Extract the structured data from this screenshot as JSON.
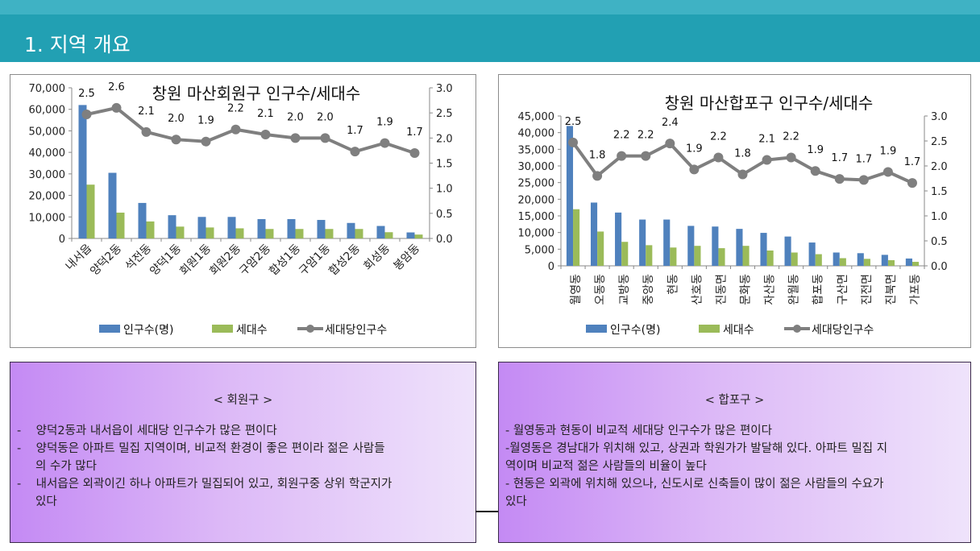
{
  "header": {
    "title": "1. 지역 개요"
  },
  "chart_data": [
    {
      "type": "bar",
      "title": "창원 마산회원구 인구수/세대수",
      "categories": [
        "내서읍",
        "양덕2동",
        "석전동",
        "양덕1동",
        "회원1동",
        "회원2동",
        "구암2동",
        "합성1동",
        "구암1동",
        "합성2동",
        "회성동",
        "봉암동"
      ],
      "series": [
        {
          "name": "인구수(명)",
          "type": "bar",
          "axis": "left",
          "color": "#4f81bd",
          "values": [
            62000,
            30500,
            16500,
            10800,
            10000,
            10000,
            9000,
            9000,
            8600,
            7200,
            5800,
            2800
          ]
        },
        {
          "name": "세대수",
          "type": "bar",
          "axis": "left",
          "color": "#9bbb59",
          "values": [
            25000,
            12000,
            7900,
            5500,
            5100,
            4700,
            4400,
            4400,
            4400,
            4400,
            2900,
            1800
          ]
        },
        {
          "name": "세대당인구수",
          "type": "line",
          "axis": "right",
          "color": "#7f7f7f",
          "values": [
            2.47,
            2.6,
            2.12,
            1.97,
            1.93,
            2.17,
            2.07,
            2.0,
            2.0,
            1.73,
            1.9,
            1.7
          ],
          "labels": [
            "2.5",
            "2.6",
            "2.1",
            "2.0",
            "1.9",
            "2.2",
            "2.1",
            "2.0",
            "2.0",
            "1.7",
            "1.9",
            "1.7"
          ]
        }
      ],
      "ylim": [
        0,
        70000
      ],
      "yticks": [
        "0",
        "10,000",
        "20,000",
        "30,000",
        "40,000",
        "50,000",
        "60,000",
        "70,000"
      ],
      "y2lim": [
        0,
        3
      ],
      "y2ticks": [
        "0.0",
        "0.5",
        "1.0",
        "1.5",
        "2.0",
        "2.5",
        "3.0"
      ],
      "label_rotation": "diagonal",
      "legend": "bottom"
    },
    {
      "type": "bar",
      "title": "창원 마산합포구 인구수/세대수",
      "categories": [
        "월영동",
        "오동동",
        "교방동",
        "중앙동",
        "현동",
        "산호동",
        "진동면",
        "문화동",
        "자산동",
        "완월동",
        "합포동",
        "구산면",
        "진전면",
        "진북면",
        "가포동"
      ],
      "series": [
        {
          "name": "인구수(명)",
          "type": "bar",
          "axis": "left",
          "color": "#4f81bd",
          "values": [
            42000,
            19000,
            16000,
            13900,
            13900,
            12000,
            11800,
            11100,
            9900,
            8800,
            7000,
            4000,
            3800,
            3300,
            2200
          ]
        },
        {
          "name": "세대수",
          "type": "bar",
          "axis": "left",
          "color": "#9bbb59",
          "values": [
            17000,
            10300,
            7200,
            6200,
            5500,
            6000,
            5300,
            6000,
            4600,
            4000,
            3500,
            2300,
            2100,
            1700,
            1200
          ]
        },
        {
          "name": "세대당인구수",
          "type": "line",
          "axis": "right",
          "color": "#7f7f7f",
          "values": [
            2.47,
            1.8,
            2.2,
            2.2,
            2.45,
            1.93,
            2.17,
            1.83,
            2.12,
            2.17,
            1.9,
            1.74,
            1.72,
            1.88,
            1.66
          ],
          "labels": [
            "2.5",
            "1.8",
            "2.2",
            "2.2",
            "2.4",
            "1.9",
            "2.2",
            "1.8",
            "2.1",
            "2.2",
            "1.9",
            "1.7",
            "1.7",
            "1.9",
            "1.7"
          ]
        }
      ],
      "ylim": [
        0,
        45000
      ],
      "yticks": [
        "0",
        "5,000",
        "10,000",
        "15,000",
        "20,000",
        "25,000",
        "30,000",
        "35,000",
        "40,000",
        "45,000"
      ],
      "y2lim": [
        0,
        3
      ],
      "y2ticks": [
        "0.0",
        "0.5",
        "1.0",
        "1.5",
        "2.0",
        "2.5",
        "3.0"
      ],
      "label_rotation": "vertical",
      "legend": "bottom"
    }
  ],
  "notes": [
    {
      "heading": "< 회원구 >",
      "lines": [
        "-    양덕2동과 내서읍이 세대당 인구수가 많은 편이다",
        "-    양덕동은 아파트 밀집 지역이며, 비교적 환경이 좋은 편이라 젊은 사람들\n     의 수가 많다",
        "-    내서읍은 외곽이긴 하나 아파트가 밀집되어 있고, 회원구중 상위 학군지가\n     있다"
      ]
    },
    {
      "heading": "< 합포구 >",
      "lines": [
        "- 월영동과 현동이 비교적 세대당 인구수가 많은 편이다",
        "-월영동은 경남대가 위치해 있고, 상권과 학원가가 발달해 있다. 아파트 밀집 지\n역이며 비교적 젊은 사람들의 비율이 높다",
        "- 현동은 외곽에 위치해 있으나, 신도시로 신축들이 많이 젊은 사람들의 수요가\n있다"
      ]
    }
  ]
}
